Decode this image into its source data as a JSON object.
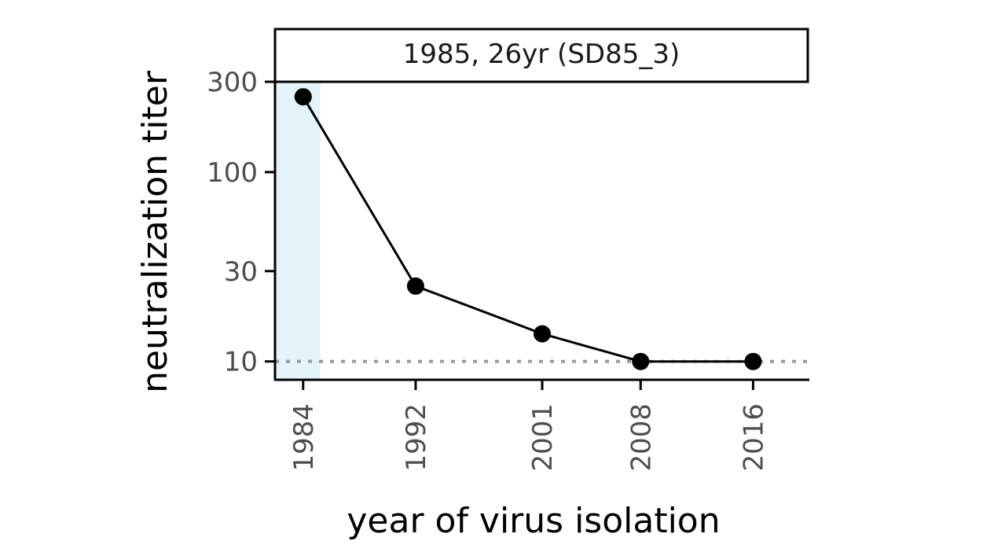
{
  "chart_data": {
    "type": "line",
    "title": "1985, 26yr (SD85_3)",
    "xlabel": "year of virus isolation",
    "ylabel": "neutralization titer",
    "x_ticks": [
      "1984",
      "1992",
      "2001",
      "2008",
      "2016"
    ],
    "y_ticks": [
      "10",
      "30",
      "100",
      "300"
    ],
    "y_scale": "log",
    "xlim": [
      1982,
      2020
    ],
    "ylim": [
      8,
      300
    ],
    "x": [
      1984,
      1992,
      2001,
      2008,
      2016
    ],
    "series": [
      {
        "values": [
          250,
          25,
          14,
          10,
          10
        ]
      }
    ],
    "reference_line": {
      "y": 10,
      "style": "dotted"
    },
    "highlight_x": 1984,
    "grid": false,
    "legend": "none",
    "colors": {
      "line": "#000000",
      "point": "#000000",
      "highlight": "#e4f2fa",
      "reference": "#999999",
      "tick_text": "#4d4d4d"
    }
  }
}
